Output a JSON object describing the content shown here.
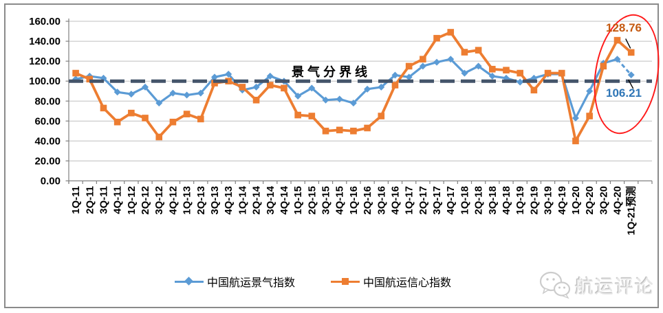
{
  "chart_data": {
    "type": "line",
    "title": "",
    "categories": [
      "1Q-11",
      "2Q-11",
      "3Q-11",
      "4Q-11",
      "1Q-12",
      "2Q-12",
      "3Q-12",
      "4Q-12",
      "1Q-13",
      "2Q-13",
      "3Q-13",
      "4Q-13",
      "1Q-14",
      "2Q-14",
      "3Q-14",
      "4Q-14",
      "1Q-15",
      "2Q-15",
      "3Q-15",
      "4Q-15",
      "1Q-16",
      "2Q-16",
      "3Q-16",
      "4Q-16",
      "1Q-17",
      "2Q-17",
      "3Q-17",
      "4Q-17",
      "1Q-18",
      "2Q-18",
      "3Q-18",
      "4Q-18",
      "1Q-19",
      "2Q-19",
      "3Q-19",
      "4Q-19",
      "1Q-20",
      "2Q-20",
      "3Q-20",
      "4Q-20",
      "1Q-21预测"
    ],
    "series": [
      {
        "name": "中国航运景气指数",
        "color": "#5B9BD5",
        "marker": "diamond",
        "values": [
          102,
          105,
          103,
          89,
          87,
          94,
          78,
          88,
          86,
          88,
          104,
          107,
          91,
          94,
          105,
          100,
          85,
          93,
          81,
          82,
          78,
          92,
          94,
          106,
          104,
          115,
          119,
          122,
          108,
          115,
          105,
          103,
          99,
          103,
          107,
          107,
          63,
          90,
          118,
          122,
          106.21
        ],
        "last_segment_dashed": true
      },
      {
        "name": "中国航运信心指数",
        "color": "#ED7D31",
        "marker": "square",
        "values": [
          108,
          102,
          73,
          59,
          68,
          63,
          44,
          59,
          67,
          62,
          98,
          100,
          94,
          81,
          96,
          93,
          66,
          65,
          50,
          51,
          50,
          53,
          65,
          96,
          115,
          122,
          143,
          149,
          129,
          131,
          112,
          111,
          108,
          91,
          108,
          108,
          40,
          65,
          115,
          141,
          128.76
        ],
        "last_segment_dashed": false
      }
    ],
    "ylim": [
      0,
      160
    ],
    "ytick_step": 20,
    "ytick_labels": [
      "0.00",
      "20.00",
      "40.00",
      "60.00",
      "80.00",
      "100.00",
      "120.00",
      "140.00",
      "160.00"
    ],
    "threshold": {
      "value": 100,
      "label": "景气分界线",
      "color": "#44546A"
    },
    "annotations": [
      {
        "text": "128.76",
        "series": "中国航运信心指数",
        "color": "#C55A11"
      },
      {
        "text": "106.21",
        "series": "中国航运景气指数",
        "color": "#2E75B6"
      }
    ],
    "highlight_ellipse_color": "#FF1A1A",
    "grid": "horizontal",
    "grid_color": "#BFBFBF",
    "axis_color": "#808080",
    "legend_position": "bottom"
  },
  "watermark": {
    "label": "航运评论",
    "icon": "wechat-chat-bubbles-icon"
  }
}
